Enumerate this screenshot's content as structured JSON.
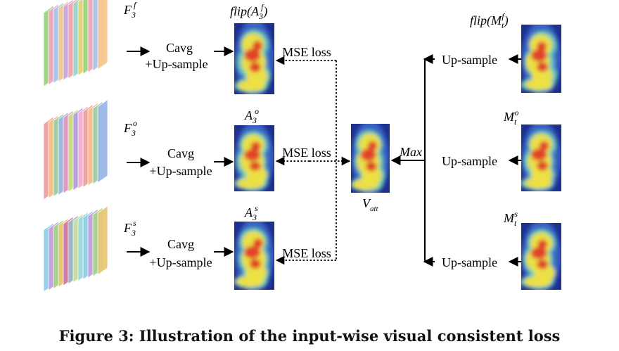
{
  "features": [
    {
      "symbol": "F",
      "sub": "3",
      "sup": "f"
    },
    {
      "symbol": "F",
      "sub": "3",
      "sup": "o"
    },
    {
      "symbol": "F",
      "sub": "3",
      "sup": "s"
    }
  ],
  "op_top": "Cavg",
  "op_bottom": "+Up-sample",
  "attention_labels": [
    {
      "prefix": "flip(",
      "symbol": "A",
      "sub": "3",
      "sup": "f",
      "suffix": ")"
    },
    {
      "prefix": "",
      "symbol": "A",
      "sub": "3",
      "sup": "o",
      "suffix": ""
    },
    {
      "prefix": "",
      "symbol": "A",
      "sub": "3",
      "sup": "s",
      "suffix": ""
    }
  ],
  "mse_label": "MSE loss",
  "v_att": {
    "symbol": "V",
    "sub": "att"
  },
  "max_label": "Max",
  "upsample_label": "Up-sample",
  "mask_labels": [
    {
      "prefix": "flip(",
      "symbol": "M",
      "sub": "t",
      "sup": "f",
      "suffix": ")"
    },
    {
      "prefix": "",
      "symbol": "M",
      "sub": "t",
      "sup": "o",
      "suffix": ""
    },
    {
      "prefix": "",
      "symbol": "M",
      "sub": "t",
      "sup": "s",
      "suffix": ""
    }
  ],
  "caption": "Figure 3: Illustration of the input-wise visual consistent loss",
  "palettes": {
    "feature_f": [
      "#9ed47e",
      "#f5a6c2",
      "#a8c8ee",
      "#f7c98f",
      "#c9a8e6",
      "#f5a6a6",
      "#9ad8d0",
      "#e8d27a"
    ],
    "feature_o": [
      "#f0a0a0",
      "#f6c08a",
      "#a0d0a8",
      "#9cb8e8",
      "#e39ac2",
      "#c8e07e",
      "#b6a0e0",
      "#f5b3d2"
    ],
    "feature_s": [
      "#8fd0e8",
      "#c8a0e0",
      "#a8d48a",
      "#e8c878",
      "#d07aa8",
      "#9ab8c8",
      "#c8e0a0",
      "#a0d8e0"
    ],
    "heat": [
      "#1d2f8f",
      "#3d6fd0",
      "#6fd0b8",
      "#f0e040",
      "#e03a28"
    ]
  }
}
